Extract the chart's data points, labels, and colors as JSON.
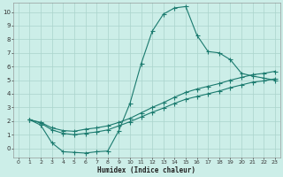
{
  "xlabel": "Humidex (Indice chaleur)",
  "bg_color": "#cceee8",
  "grid_color": "#aad4cc",
  "line_color": "#1a7a6e",
  "xlim": [
    -0.5,
    23.5
  ],
  "ylim": [
    -0.7,
    10.7
  ],
  "xticks": [
    0,
    1,
    2,
    3,
    4,
    5,
    6,
    7,
    8,
    9,
    10,
    11,
    12,
    13,
    14,
    15,
    16,
    17,
    18,
    19,
    20,
    21,
    22,
    23
  ],
  "yticks": [
    0,
    1,
    2,
    3,
    4,
    5,
    6,
    7,
    8,
    9,
    10
  ],
  "line1_x": [
    1,
    2,
    3,
    4,
    5,
    6,
    7,
    8,
    9,
    10,
    11,
    12,
    13,
    14,
    15,
    16,
    17,
    18,
    19,
    20,
    21,
    22,
    23
  ],
  "line1_y": [
    2.1,
    1.7,
    0.4,
    -0.25,
    -0.3,
    -0.35,
    -0.25,
    -0.2,
    1.3,
    3.3,
    6.2,
    8.6,
    9.85,
    10.3,
    10.4,
    8.3,
    7.1,
    7.0,
    6.5,
    5.5,
    5.3,
    5.15,
    5.0
  ],
  "line2_x": [
    1,
    2,
    3,
    4,
    5,
    6,
    7,
    8,
    9,
    10,
    11,
    12,
    13,
    14,
    15,
    16,
    17,
    18,
    19,
    20,
    21,
    22,
    23
  ],
  "line2_y": [
    2.1,
    1.9,
    1.5,
    1.3,
    1.25,
    1.4,
    1.5,
    1.65,
    1.9,
    2.2,
    2.6,
    3.0,
    3.35,
    3.75,
    4.1,
    4.35,
    4.55,
    4.75,
    5.0,
    5.2,
    5.4,
    5.5,
    5.65
  ],
  "line3_x": [
    1,
    2,
    3,
    4,
    5,
    6,
    7,
    8,
    9,
    10,
    11,
    12,
    13,
    14,
    15,
    16,
    17,
    18,
    19,
    20,
    21,
    22,
    23
  ],
  "line3_y": [
    2.1,
    1.85,
    1.35,
    1.1,
    1.0,
    1.1,
    1.2,
    1.35,
    1.65,
    1.95,
    2.3,
    2.65,
    2.95,
    3.3,
    3.6,
    3.8,
    4.0,
    4.2,
    4.45,
    4.65,
    4.85,
    4.95,
    5.1
  ]
}
